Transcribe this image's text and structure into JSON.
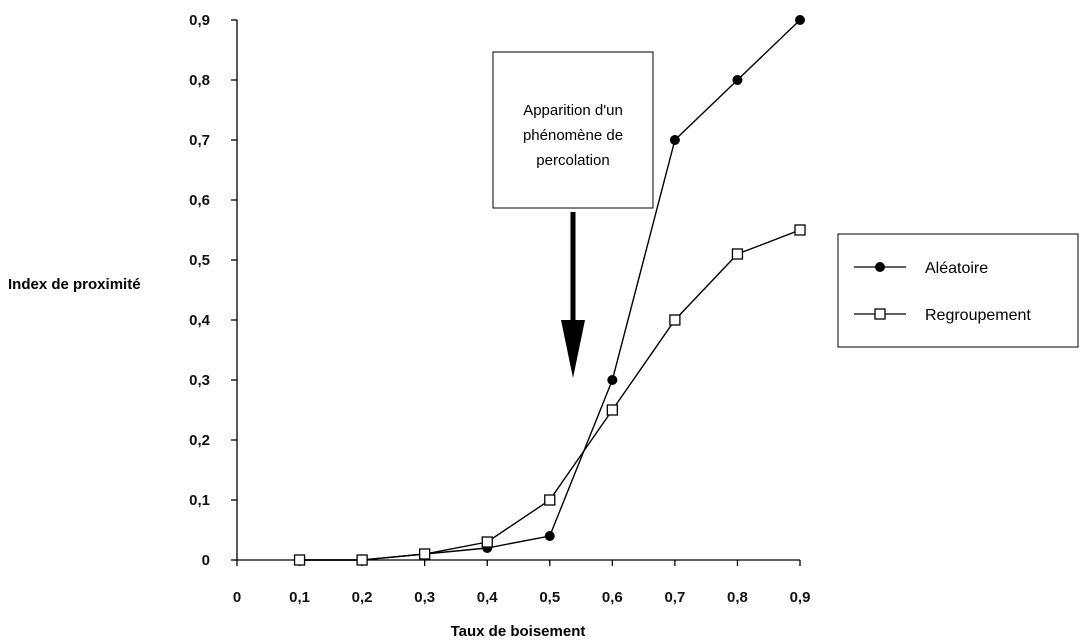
{
  "chart_data": {
    "type": "line",
    "title": "",
    "xlabel": "Taux de boisement",
    "ylabel": "Index de proximité",
    "x_ticks": [
      "0",
      "0,1",
      "0,2",
      "0,3",
      "0,4",
      "0,5",
      "0,6",
      "0,7",
      "0,8",
      "0,9"
    ],
    "y_ticks": [
      "0",
      "0,1",
      "0,2",
      "0,3",
      "0,4",
      "0,5",
      "0,6",
      "0,7",
      "0,8",
      "0,9"
    ],
    "xlim": [
      0,
      0.9
    ],
    "ylim": [
      0,
      0.9
    ],
    "grid": false,
    "legend_position": "right",
    "series": [
      {
        "name": "Aléatoire",
        "marker": "filled-circle",
        "x": [
          0.1,
          0.2,
          0.3,
          0.4,
          0.5,
          0.6,
          0.7,
          0.8,
          0.9
        ],
        "values": [
          0,
          0,
          0.01,
          0.02,
          0.04,
          0.3,
          0.7,
          0.8,
          0.9
        ]
      },
      {
        "name": "Regroupement",
        "marker": "open-square",
        "x": [
          0.1,
          0.2,
          0.3,
          0.4,
          0.5,
          0.6,
          0.7,
          0.8,
          0.9
        ],
        "values": [
          0,
          0,
          0.01,
          0.03,
          0.1,
          0.25,
          0.4,
          0.51,
          0.55
        ]
      }
    ],
    "annotation": {
      "lines": [
        "Apparition d'un",
        "phénomène de",
        "percolation"
      ],
      "arrow": "down",
      "points_to_x": 0.54
    }
  },
  "colors": {
    "line": "#000000",
    "background": "#ffffff"
  }
}
